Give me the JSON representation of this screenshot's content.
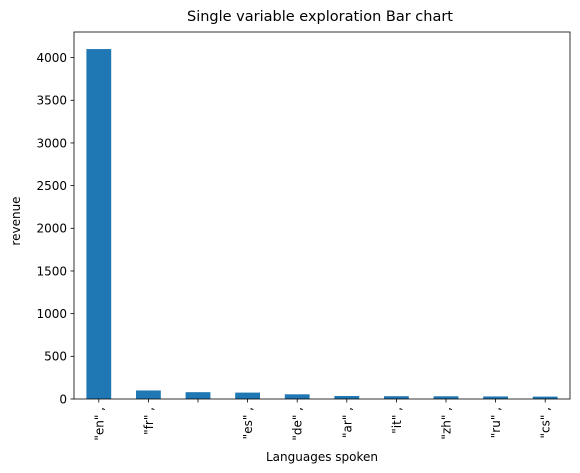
{
  "chart_data": {
    "type": "bar",
    "title": "Single variable exploration Bar chart",
    "xlabel": "Languages spoken",
    "ylabel": "revenue",
    "categories": [
      "\"en\" ,",
      "\"fr\" ,",
      "",
      "\"es\" ,",
      "\"de\" ,",
      "\"ar\" ,",
      "\"it\" ,",
      "\"zh\" ,",
      "\"ru\" ,",
      "\"cs\" ,"
    ],
    "values": [
      4100,
      100,
      80,
      75,
      55,
      35,
      33,
      32,
      30,
      28
    ],
    "ylim": [
      0,
      4300
    ],
    "yticks": [
      0,
      500,
      1000,
      1500,
      2000,
      2500,
      3000,
      3500,
      4000
    ],
    "bar_color": "#1f77b4",
    "grid": false,
    "legend": false
  }
}
